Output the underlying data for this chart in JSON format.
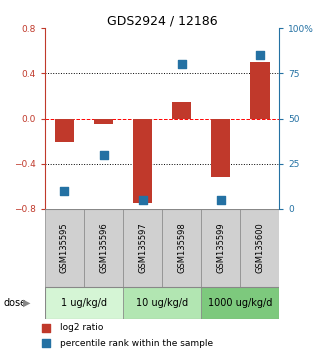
{
  "title": "GDS2924 / 12186",
  "samples": [
    "GSM135595",
    "GSM135596",
    "GSM135597",
    "GSM135598",
    "GSM135599",
    "GSM135600"
  ],
  "log2_ratio": [
    -0.21,
    -0.05,
    -0.75,
    0.15,
    -0.52,
    0.5
  ],
  "percentile_rank": [
    10,
    30,
    5,
    80,
    5,
    85
  ],
  "bar_color": "#C0392B",
  "dot_color": "#2471A3",
  "ylim_left": [
    -0.8,
    0.8
  ],
  "ylim_right": [
    0,
    100
  ],
  "yticks_left": [
    0.8,
    0.4,
    0.0,
    -0.4,
    -0.8
  ],
  "yticks_right": [
    100,
    75,
    50,
    25,
    0
  ],
  "hlines": [
    0.4,
    0.0,
    -0.4
  ],
  "hline_styles": [
    "dotted",
    "dashed",
    "dotted"
  ],
  "hline_colors": [
    "black",
    "red",
    "black"
  ],
  "dose_groups": [
    {
      "label": "1 ug/kg/d",
      "samples": [
        0,
        1
      ],
      "color": "#d5f5d5"
    },
    {
      "label": "10 ug/kg/d",
      "samples": [
        2,
        3
      ],
      "color": "#b2e6b2"
    },
    {
      "label": "1000 ug/kg/d",
      "samples": [
        4,
        5
      ],
      "color": "#7dc97d"
    }
  ],
  "legend_bar_label": "log2 ratio",
  "legend_dot_label": "percentile rank within the sample",
  "xlabel_dose": "dose",
  "bar_width": 0.5,
  "dot_size": 35,
  "sample_label_fontsize": 6.0,
  "dose_label_fontsize": 7.0,
  "title_fontsize": 9,
  "tick_fontsize": 6.5,
  "legend_fontsize": 6.5
}
